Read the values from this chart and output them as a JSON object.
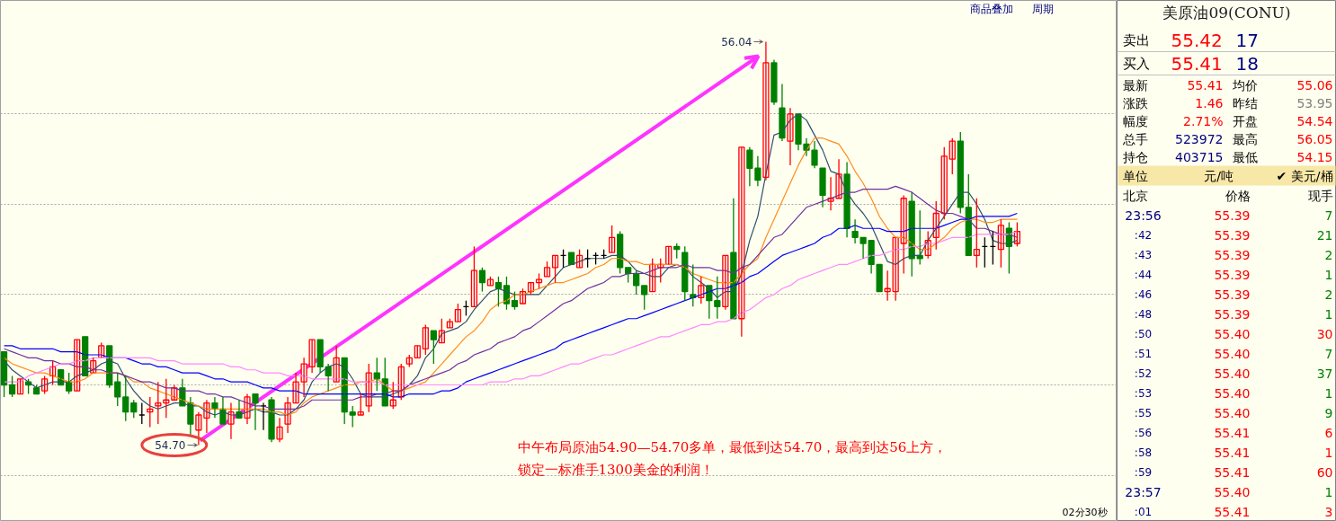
{
  "chart_data": [
    {
      "type": "candlestick",
      "categories": [
        null,
        null,
        null,
        null,
        null,
        null,
        null,
        null,
        null,
        null,
        null,
        null,
        null,
        null,
        null,
        null,
        null,
        null,
        null,
        null,
        null,
        null,
        null,
        null,
        null,
        null,
        null,
        null,
        null,
        null,
        null,
        null,
        null,
        null,
        null,
        null,
        null,
        null,
        null,
        null,
        null,
        null,
        null,
        null,
        null,
        null,
        null,
        null,
        null,
        null,
        null,
        null,
        null,
        null,
        null,
        null,
        null,
        null,
        null,
        null,
        null,
        null,
        null,
        null,
        null,
        null,
        null,
        null,
        null,
        null,
        null,
        null,
        null,
        null,
        null,
        null,
        null,
        null,
        null,
        null,
        null,
        null,
        null,
        null,
        null,
        null,
        null,
        null,
        null,
        null,
        null,
        null,
        null,
        null,
        null,
        null,
        null,
        null,
        null,
        null,
        null,
        null,
        null,
        null,
        null,
        null,
        null,
        null,
        null,
        null,
        null,
        null,
        null,
        null,
        null,
        null,
        null,
        null,
        null,
        null,
        null,
        null,
        null,
        null,
        null,
        null
      ],
      "ohlc": [
        [
          55.01,
          55.01,
          54.86,
          54.9
        ],
        [
          54.9,
          54.93,
          54.86,
          54.87
        ],
        [
          54.87,
          54.92,
          54.87,
          54.92
        ],
        [
          54.91,
          54.92,
          54.87,
          54.9
        ],
        [
          54.89,
          54.9,
          54.87,
          54.87
        ],
        [
          54.88,
          54.93,
          54.87,
          54.92
        ],
        [
          54.93,
          54.98,
          54.9,
          54.96
        ],
        [
          54.95,
          54.95,
          54.9,
          54.9
        ],
        [
          54.91,
          54.94,
          54.87,
          54.88
        ],
        [
          54.88,
          55.05,
          54.88,
          55.05
        ],
        [
          55.06,
          55.06,
          54.93,
          54.93
        ],
        [
          54.94,
          54.99,
          54.94,
          54.98
        ],
        [
          54.99,
          55.04,
          54.99,
          55.03
        ],
        [
          55.03,
          55.03,
          54.89,
          54.9
        ],
        [
          54.91,
          54.94,
          54.83,
          54.86
        ],
        [
          54.86,
          54.93,
          54.78,
          54.81
        ],
        [
          54.84,
          54.85,
          54.79,
          54.81
        ],
        [
          54.8,
          54.84,
          54.77,
          54.8
        ],
        [
          54.81,
          54.86,
          54.76,
          54.82
        ],
        [
          54.83,
          54.91,
          54.77,
          54.84
        ],
        [
          54.84,
          54.92,
          54.79,
          54.85
        ],
        [
          54.85,
          54.9,
          54.85,
          54.89
        ],
        [
          54.89,
          54.92,
          54.83,
          54.83
        ],
        [
          54.84,
          54.86,
          54.73,
          54.77
        ],
        [
          54.75,
          54.81,
          54.7,
          54.8
        ],
        [
          54.79,
          54.85,
          54.74,
          54.84
        ],
        [
          54.84,
          54.86,
          54.79,
          54.82
        ],
        [
          54.82,
          54.86,
          54.77,
          54.77
        ],
        [
          54.77,
          54.84,
          54.72,
          54.81
        ],
        [
          54.81,
          54.85,
          54.79,
          54.79
        ],
        [
          54.79,
          54.87,
          54.77,
          54.86
        ],
        [
          54.87,
          54.87,
          54.75,
          54.84
        ],
        [
          54.83,
          54.84,
          54.75,
          54.83
        ],
        [
          54.85,
          54.86,
          54.71,
          54.72
        ],
        [
          54.72,
          54.79,
          54.71,
          54.76
        ],
        [
          54.77,
          54.86,
          54.74,
          54.84
        ],
        [
          54.84,
          54.94,
          54.84,
          54.91
        ],
        [
          54.91,
          54.99,
          54.86,
          54.97
        ],
        [
          54.96,
          55.05,
          54.94,
          55.05
        ],
        [
          55.05,
          55.05,
          54.94,
          54.96
        ],
        [
          54.96,
          54.97,
          54.88,
          54.93
        ],
        [
          54.91,
          55.03,
          54.91,
          54.99
        ],
        [
          54.99,
          54.99,
          54.77,
          54.81
        ],
        [
          54.81,
          54.83,
          54.76,
          54.8
        ],
        [
          54.8,
          54.87,
          54.8,
          54.81
        ],
        [
          54.83,
          54.97,
          54.81,
          54.94
        ],
        [
          54.94,
          54.99,
          54.88,
          54.92
        ],
        [
          54.92,
          54.99,
          54.83,
          54.83
        ],
        [
          54.83,
          54.91,
          54.82,
          54.85
        ],
        [
          54.86,
          54.97,
          54.85,
          54.96
        ],
        [
          54.97,
          55.0,
          54.96,
          54.99
        ],
        [
          54.99,
          55.03,
          54.99,
          55.03
        ],
        [
          55.02,
          55.1,
          55.0,
          55.09
        ],
        [
          55.08,
          55.08,
          54.97,
          55.05
        ],
        [
          55.04,
          55.12,
          55.04,
          55.08
        ],
        [
          55.09,
          55.12,
          55.09,
          55.11
        ],
        [
          55.11,
          55.17,
          55.11,
          55.15
        ],
        [
          55.16,
          55.18,
          55.13,
          55.16
        ],
        [
          55.16,
          55.36,
          55.16,
          55.28
        ],
        [
          55.28,
          55.29,
          55.21,
          55.24
        ],
        [
          55.23,
          55.26,
          55.23,
          55.25
        ],
        [
          55.24,
          55.26,
          55.16,
          55.22
        ],
        [
          55.23,
          55.26,
          55.15,
          55.17
        ],
        [
          55.18,
          55.21,
          55.15,
          55.16
        ],
        [
          55.17,
          55.22,
          55.17,
          55.21
        ],
        [
          55.21,
          55.24,
          55.2,
          55.24
        ],
        [
          55.24,
          55.27,
          55.22,
          55.25
        ],
        [
          55.26,
          55.31,
          55.26,
          55.29
        ],
        [
          55.29,
          55.33,
          55.24,
          55.33
        ],
        [
          55.33,
          55.35,
          55.29,
          55.33
        ],
        [
          55.34,
          55.34,
          55.3,
          55.3
        ],
        [
          55.29,
          55.35,
          55.29,
          55.33
        ],
        [
          55.32,
          55.35,
          55.29,
          55.32
        ],
        [
          55.33,
          55.34,
          55.3,
          55.33
        ],
        [
          55.33,
          55.35,
          55.32,
          55.33
        ],
        [
          55.34,
          55.43,
          55.34,
          55.39
        ],
        [
          55.4,
          55.41,
          55.27,
          55.29
        ],
        [
          55.29,
          55.29,
          55.24,
          55.27
        ],
        [
          55.27,
          55.28,
          55.2,
          55.23
        ],
        [
          55.23,
          55.23,
          55.15,
          55.2
        ],
        [
          55.21,
          55.32,
          55.21,
          55.3
        ],
        [
          55.29,
          55.32,
          55.24,
          55.3
        ],
        [
          55.3,
          55.36,
          55.3,
          55.36
        ],
        [
          55.36,
          55.37,
          55.32,
          55.35
        ],
        [
          55.34,
          55.36,
          55.18,
          55.21
        ],
        [
          55.2,
          55.3,
          55.16,
          55.19
        ],
        [
          55.19,
          55.26,
          55.17,
          55.23
        ],
        [
          55.23,
          55.23,
          55.12,
          55.18
        ],
        [
          55.18,
          55.26,
          55.12,
          55.16
        ],
        [
          55.16,
          55.33,
          55.15,
          55.33
        ],
        [
          55.34,
          55.52,
          55.12,
          55.12
        ],
        [
          55.12,
          55.69,
          55.06,
          55.69
        ],
        [
          55.68,
          55.69,
          55.56,
          55.62
        ],
        [
          55.62,
          55.66,
          55.56,
          55.58
        ],
        [
          55.59,
          56.04,
          55.58,
          55.97
        ],
        [
          55.97,
          55.98,
          55.83,
          55.84
        ],
        [
          55.82,
          55.9,
          55.71,
          55.72
        ],
        [
          55.71,
          55.82,
          55.63,
          55.8
        ],
        [
          55.8,
          55.8,
          55.68,
          55.7
        ],
        [
          55.7,
          55.72,
          55.66,
          55.68
        ],
        [
          55.68,
          55.71,
          55.62,
          55.63
        ],
        [
          55.62,
          55.62,
          55.49,
          55.53
        ],
        [
          55.51,
          55.59,
          55.48,
          55.52
        ],
        [
          55.52,
          55.65,
          55.52,
          55.6
        ],
        [
          55.6,
          55.64,
          55.39,
          55.42
        ],
        [
          55.41,
          55.45,
          55.37,
          55.39
        ],
        [
          55.39,
          55.39,
          55.32,
          55.37
        ],
        [
          55.38,
          55.38,
          55.27,
          55.3
        ],
        [
          55.3,
          55.3,
          55.21,
          55.21
        ],
        [
          55.21,
          55.28,
          55.18,
          55.22
        ],
        [
          55.21,
          55.39,
          55.18,
          55.39
        ],
        [
          55.37,
          55.53,
          55.27,
          55.52
        ],
        [
          55.51,
          55.54,
          55.26,
          55.32
        ],
        [
          55.33,
          55.48,
          55.3,
          55.32
        ],
        [
          55.33,
          55.41,
          55.32,
          55.38
        ],
        [
          55.39,
          55.51,
          55.35,
          55.47
        ],
        [
          55.47,
          55.69,
          55.45,
          55.66
        ],
        [
          55.65,
          55.72,
          55.6,
          55.71
        ],
        [
          55.71,
          55.74,
          55.47,
          55.49
        ],
        [
          55.49,
          55.6,
          55.33,
          55.33
        ],
        [
          55.33,
          55.52,
          55.29,
          55.35
        ],
        [
          55.36,
          55.39,
          55.29,
          55.36
        ],
        [
          55.36,
          55.41,
          55.3,
          55.36
        ],
        [
          55.35,
          55.45,
          55.29,
          55.43
        ],
        [
          55.42,
          55.44,
          55.27,
          55.36
        ],
        [
          55.37,
          55.44,
          55.36,
          55.41
        ]
      ],
      "series": [
        {
          "type": "line",
          "color": "#2f4f6f",
          "values": [
            54.98,
            54.95,
            54.93,
            54.91,
            54.89,
            54.9,
            54.91,
            54.91,
            54.91,
            54.93,
            54.94,
            54.95,
            54.97,
            54.98,
            54.97,
            54.92,
            54.88,
            54.85,
            54.83,
            54.82,
            54.83,
            54.84,
            54.84,
            54.83,
            54.83,
            54.81,
            54.8,
            54.81,
            54.8,
            54.8,
            54.81,
            54.82,
            54.81,
            54.81,
            54.8,
            54.8,
            54.82,
            54.85,
            54.91,
            54.94,
            54.96,
            54.97,
            54.96,
            54.92,
            54.87,
            54.86,
            54.86,
            54.86,
            54.87,
            54.88,
            54.9,
            54.93,
            54.99,
            55.02,
            55.07,
            55.08,
            55.09,
            55.11,
            55.15,
            55.18,
            55.21,
            55.22,
            55.21,
            55.2,
            55.2,
            55.2,
            55.2,
            55.23,
            55.26,
            55.29,
            55.3,
            55.31,
            55.32,
            55.32,
            55.32,
            55.33,
            55.33,
            55.31,
            55.28,
            55.27,
            55.26,
            55.26,
            55.29,
            55.3,
            55.29,
            55.26,
            55.24,
            55.22,
            55.19,
            55.21,
            55.21,
            55.27,
            55.38,
            55.46,
            55.6,
            55.73,
            55.74,
            55.78,
            55.8,
            55.78,
            55.73,
            55.68,
            55.61,
            55.6,
            55.54,
            55.5,
            55.47,
            55.43,
            55.37,
            55.31,
            55.3,
            55.32,
            55.33,
            55.33,
            55.38,
            55.42,
            55.46,
            55.5,
            55.54,
            55.54,
            55.5,
            55.45,
            55.38,
            55.37,
            55.37,
            55.38
          ]
        },
        {
          "type": "line",
          "color": "#ff8c1a",
          "values": [
            54.99,
            54.97,
            54.96,
            54.95,
            54.94,
            54.94,
            54.93,
            54.92,
            54.91,
            54.91,
            54.92,
            54.94,
            54.94,
            54.94,
            54.94,
            54.93,
            54.91,
            54.91,
            54.89,
            54.88,
            54.87,
            54.86,
            54.85,
            54.84,
            54.83,
            54.82,
            54.82,
            54.82,
            54.82,
            54.82,
            54.82,
            54.82,
            54.82,
            54.81,
            54.81,
            54.8,
            54.81,
            54.84,
            54.86,
            54.87,
            54.88,
            54.89,
            54.9,
            54.9,
            54.91,
            54.91,
            54.92,
            54.9,
            54.88,
            54.88,
            54.89,
            54.9,
            54.91,
            54.94,
            54.97,
            55.0,
            55.03,
            55.06,
            55.08,
            55.11,
            55.15,
            55.17,
            55.18,
            55.2,
            55.2,
            55.21,
            55.22,
            55.23,
            55.24,
            55.24,
            55.25,
            55.26,
            55.27,
            55.29,
            55.3,
            55.32,
            55.32,
            55.31,
            55.31,
            55.3,
            55.3,
            55.3,
            55.3,
            55.3,
            55.29,
            55.27,
            55.26,
            55.25,
            55.24,
            55.24,
            55.24,
            55.27,
            55.3,
            55.32,
            55.39,
            55.45,
            55.51,
            55.57,
            55.63,
            55.68,
            55.72,
            55.72,
            55.71,
            55.7,
            55.66,
            55.61,
            55.57,
            55.52,
            55.46,
            55.42,
            55.39,
            55.39,
            55.37,
            55.35,
            55.35,
            55.37,
            55.39,
            55.42,
            55.44,
            55.45,
            55.45,
            55.44,
            55.44,
            55.45,
            55.45,
            55.45
          ]
        },
        {
          "type": "line",
          "color": "#7030a0",
          "values": [
            55.02,
            55.01,
            55.0,
            54.99,
            54.99,
            54.98,
            54.98,
            54.97,
            54.97,
            54.96,
            54.96,
            54.95,
            54.95,
            54.94,
            54.94,
            54.93,
            54.92,
            54.91,
            54.91,
            54.9,
            54.89,
            54.89,
            54.88,
            54.88,
            54.88,
            54.87,
            54.87,
            54.86,
            54.86,
            54.85,
            54.84,
            54.83,
            54.83,
            54.82,
            54.82,
            54.82,
            54.82,
            54.83,
            54.85,
            54.85,
            54.85,
            54.85,
            54.85,
            54.85,
            54.86,
            54.86,
            54.87,
            54.87,
            54.88,
            54.88,
            54.9,
            54.91,
            54.92,
            54.93,
            54.94,
            54.95,
            54.97,
            54.98,
            55.0,
            55.01,
            55.02,
            55.04,
            55.05,
            55.06,
            55.08,
            55.09,
            55.11,
            55.13,
            55.15,
            55.17,
            55.18,
            55.2,
            55.22,
            55.23,
            55.24,
            55.26,
            55.26,
            55.27,
            55.27,
            55.27,
            55.28,
            55.29,
            55.29,
            55.29,
            55.3,
            55.29,
            55.29,
            55.29,
            55.28,
            55.28,
            55.27,
            55.29,
            55.3,
            55.33,
            55.36,
            55.39,
            55.4,
            55.43,
            55.46,
            55.49,
            55.5,
            55.51,
            55.52,
            55.53,
            55.54,
            55.54,
            55.55,
            55.55,
            55.55,
            55.55,
            55.56,
            55.55,
            55.54,
            55.52,
            55.5,
            55.48,
            55.47,
            55.47,
            55.46,
            55.45,
            55.42,
            55.42,
            55.41,
            55.4,
            55.4,
            55.39
          ]
        },
        {
          "type": "line",
          "color": "#0000ff",
          "values": [
            55.03,
            55.03,
            55.02,
            55.02,
            55.02,
            55.02,
            55.02,
            55.01,
            55.01,
            55.01,
            55.0,
            55.0,
            55.0,
            54.99,
            54.99,
            54.99,
            54.98,
            54.97,
            54.97,
            54.96,
            54.96,
            54.95,
            54.94,
            54.94,
            54.94,
            54.93,
            54.92,
            54.92,
            54.91,
            54.91,
            54.91,
            54.9,
            54.89,
            54.89,
            54.88,
            54.88,
            54.88,
            54.87,
            54.87,
            54.87,
            54.87,
            54.87,
            54.87,
            54.87,
            54.87,
            54.87,
            54.87,
            54.87,
            54.86,
            54.86,
            54.87,
            54.87,
            54.87,
            54.87,
            54.88,
            54.88,
            54.89,
            54.91,
            54.92,
            54.93,
            54.94,
            54.95,
            54.96,
            54.97,
            54.98,
            54.99,
            55.0,
            55.01,
            55.02,
            55.04,
            55.05,
            55.06,
            55.07,
            55.08,
            55.09,
            55.1,
            55.11,
            55.12,
            55.12,
            55.13,
            55.14,
            55.15,
            55.16,
            55.17,
            55.18,
            55.19,
            55.2,
            55.21,
            55.22,
            55.22,
            55.23,
            55.24,
            55.26,
            55.27,
            55.29,
            55.31,
            55.33,
            55.34,
            55.35,
            55.36,
            55.37,
            55.39,
            55.4,
            55.42,
            55.42,
            55.43,
            55.42,
            55.42,
            55.42,
            55.41,
            55.41,
            55.41,
            55.42,
            55.42,
            55.42,
            55.42,
            55.43,
            55.44,
            55.45,
            55.45,
            55.46,
            55.46,
            55.46,
            55.46,
            55.46,
            55.47
          ]
        },
        {
          "type": "line",
          "color": "#ff88ff",
          "values": [
            54.91,
            54.91,
            54.91,
            54.93,
            54.94,
            54.95,
            54.96,
            54.97,
            54.97,
            54.98,
            54.98,
            54.99,
            54.99,
            54.99,
            54.99,
            54.99,
            54.99,
            54.99,
            54.99,
            54.98,
            54.98,
            54.98,
            54.97,
            54.97,
            54.97,
            54.97,
            54.97,
            54.97,
            54.96,
            54.96,
            54.95,
            54.95,
            54.94,
            54.94,
            54.94,
            54.93,
            54.93,
            54.93,
            54.92,
            54.92,
            54.92,
            54.92,
            54.92,
            54.91,
            54.91,
            54.91,
            54.91,
            54.9,
            54.9,
            54.9,
            54.9,
            54.9,
            54.9,
            54.9,
            54.9,
            54.9,
            54.9,
            54.9,
            54.9,
            54.9,
            54.91,
            54.91,
            54.91,
            54.92,
            54.92,
            54.93,
            54.93,
            54.94,
            54.95,
            54.96,
            54.97,
            54.97,
            54.98,
            54.99,
            55.0,
            55.0,
            55.01,
            55.02,
            55.03,
            55.04,
            55.05,
            55.06,
            55.06,
            55.07,
            55.08,
            55.09,
            55.1,
            55.1,
            55.11,
            55.11,
            55.12,
            55.14,
            55.15,
            55.17,
            55.19,
            55.2,
            55.22,
            55.23,
            55.25,
            55.26,
            55.27,
            55.28,
            55.29,
            55.3,
            55.3,
            55.31,
            55.32,
            55.33,
            55.33,
            55.34,
            55.35,
            55.35,
            55.36,
            55.36,
            55.37,
            55.37,
            55.38,
            55.39,
            55.39,
            55.39,
            55.4,
            55.4,
            55.4,
            55.4,
            55.4,
            55.41
          ]
        }
      ],
      "yticks": [
        {
          "value": 55.8,
          "label": null
        },
        {
          "value": 55.5,
          "label": null
        },
        {
          "value": 55.2,
          "label": null
        },
        {
          "value": 54.9,
          "label": null
        },
        {
          "value": 54.6,
          "label": null
        }
      ],
      "grid": "y",
      "tick_labels": false,
      "annotations": [
        "56.04",
        "54.70",
        "中午布局原油54.90—54.70多单，最低到达54.70，最高到达56上方，",
        "锁定一标准手1300美金的利润！",
        "商品叠加",
        "周期",
        "02分30秒"
      ]
    },
    {
      "type": "other",
      "title": "美原油09(CONU)",
      "annotations": [
        "卖出",
        "55.42",
        "17",
        "买入",
        "55.41",
        "18",
        "最新",
        "55.41",
        "均价",
        "55.06",
        "涨跌",
        "1.46",
        "昨结",
        "53.95",
        "幅度",
        "2.71%",
        "开盘",
        "54.54",
        "总手",
        "523972",
        "最高",
        "56.05",
        "持仓",
        "403715",
        "最低",
        "54.15",
        "单位",
        "元/吨",
        "✔ 美元/桶",
        "北京",
        "价格",
        "现手",
        "23:56",
        "55.39",
        "7",
        ":42",
        "55.39",
        "21",
        ":43",
        "55.39",
        "2",
        ":44",
        "55.39",
        "1",
        ":46",
        "55.39",
        "2",
        ":48",
        "55.39",
        "1",
        ":50",
        "55.40",
        "30",
        ":51",
        "55.40",
        "7",
        ":52",
        "55.40",
        "37",
        ":53",
        "55.40",
        "1",
        ":55",
        "55.40",
        "9",
        ":56",
        "55.41",
        "6",
        ":58",
        "55.41",
        "1",
        ":59",
        "55.41",
        "60",
        "23:57",
        "55.40",
        "1",
        ":01",
        "55.41",
        "3"
      ]
    }
  ]
}
